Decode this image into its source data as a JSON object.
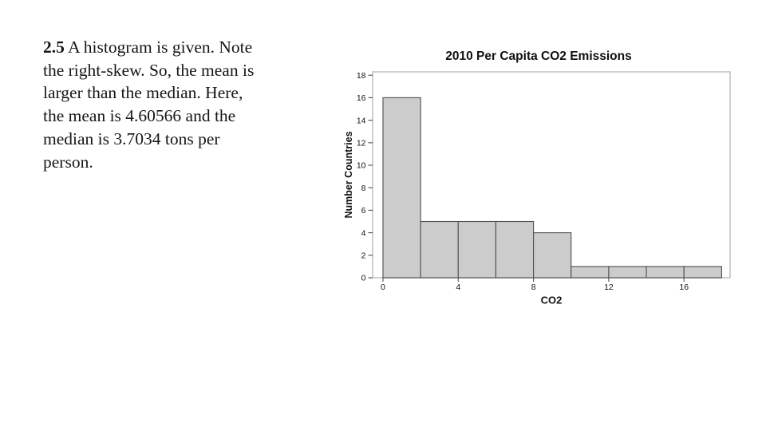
{
  "problem": {
    "number": "2.5",
    "lines": [
      "A histogram is given. Note",
      "the right-skew. So, the mean is",
      "larger than the median. Here,",
      "the mean is 4.60566 and the",
      "median is 3.7034 tons per",
      "person."
    ]
  },
  "chart_data": {
    "type": "bar",
    "variant": "histogram",
    "title": "2010 Per Capita CO2 Emissions",
    "xlabel": "CO2",
    "ylabel": "Number Countries",
    "bin_edges": [
      0,
      2,
      4,
      6,
      8,
      10,
      12,
      14,
      16,
      18
    ],
    "counts": [
      16,
      5,
      5,
      5,
      4,
      1,
      1,
      1,
      1
    ],
    "xticks": [
      0,
      4,
      8,
      12,
      16
    ],
    "yticks": [
      0,
      2,
      4,
      6,
      8,
      10,
      12,
      14,
      16,
      18
    ],
    "xlim": [
      -0.55,
      18.45
    ],
    "ylim": [
      0,
      18.3
    ],
    "grid": false,
    "legend": null,
    "colors": {
      "bar_fill": "#cccccc",
      "bar_stroke": "#4f4f4f",
      "frame": "#c0c0c0",
      "tick": "#4f4f4f",
      "text": "#111111"
    }
  }
}
